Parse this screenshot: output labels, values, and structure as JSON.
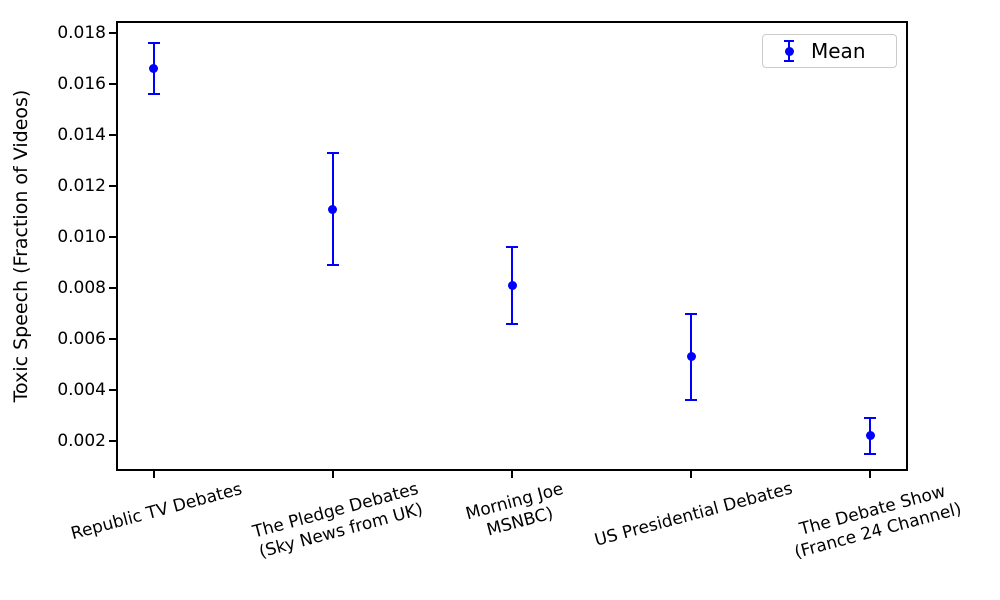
{
  "chart_data": {
    "type": "scatter",
    "subtype": "errorbar",
    "title": "",
    "xlabel": "",
    "ylabel": "Toxic Speech (Fraction of Videos)",
    "legend": {
      "label": "Mean",
      "position": "upper right"
    },
    "marker_color": "#0000ff",
    "categories": [
      "Republic TV Debates",
      "The Pledge Debates\n(Sky News from UK)",
      "Morning Joe\nMSNBC)",
      "US Presidential Debates",
      "The Debate Show\n(France 24 Channel)"
    ],
    "series": [
      {
        "name": "Mean",
        "means": [
          0.0166,
          0.0111,
          0.0081,
          0.0053,
          0.0022
        ],
        "errors": [
          0.001,
          0.0022,
          0.0015,
          0.0017,
          0.0007
        ]
      }
    ],
    "yticks": [
      0.002,
      0.004,
      0.006,
      0.008,
      0.01,
      0.012,
      0.014,
      0.016,
      0.018
    ],
    "ytick_labels": [
      "0.002",
      "0.004",
      "0.006",
      "0.008",
      "0.010",
      "0.012",
      "0.014",
      "0.016",
      "0.018"
    ],
    "ylim": [
      0.0009,
      0.0184
    ],
    "xlim": [
      -0.2,
      4.2
    ],
    "grid": false,
    "xtick_rotation_deg": 15
  }
}
